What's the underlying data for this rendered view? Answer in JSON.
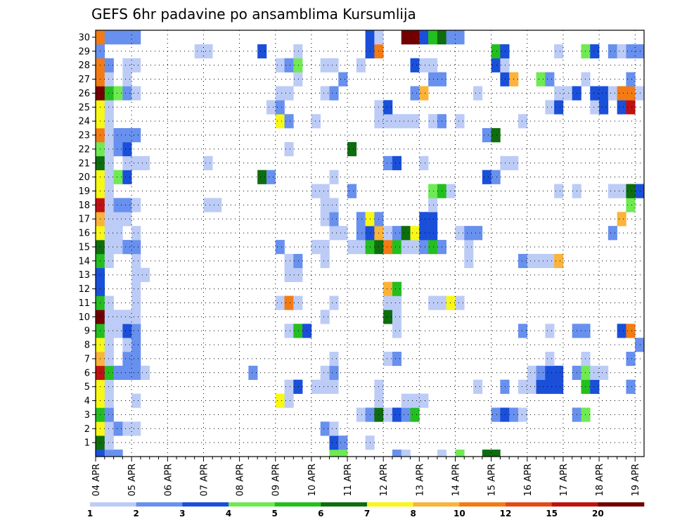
{
  "chart_data": {
    "type": "heatmap",
    "title": "GEFS 6hr padavine po ansamblima Kursumlija",
    "x_tick_labels": [
      "04 APR",
      "05 APR",
      "06 APR",
      "07 APR",
      "08 APR",
      "09 APR",
      "10 APR",
      "11 APR",
      "12 APR",
      "13 APR",
      "14 APR",
      "15 APR",
      "16 APR",
      "17 APR",
      "18 APR",
      "19 APR"
    ],
    "y_tick_labels": [
      "1",
      "2",
      "3",
      "4",
      "5",
      "6",
      "7",
      "8",
      "9",
      "10",
      "11",
      "12",
      "13",
      "14",
      "15",
      "16",
      "17",
      "18",
      "19",
      "20",
      "21",
      "22",
      "23",
      "24",
      "25",
      "26",
      "27",
      "28",
      "29",
      "30"
    ],
    "n_steps": 61,
    "steps_per_day": 4,
    "y_range": [
      0,
      30
    ],
    "grid": "dotted",
    "colorbar": {
      "levels": [
        "1",
        "2",
        "3",
        "4",
        "5",
        "6",
        "7",
        "8",
        "10",
        "12",
        "15",
        "20"
      ],
      "colors": [
        "#bcccf6",
        "#6890ee",
        "#1a4fd9",
        "#6fea53",
        "#23bf1f",
        "#0e6d0e",
        "#f8f816",
        "#fbb33a",
        "#f37b14",
        "#e34a17",
        "#c01111",
        "#720000"
      ]
    },
    "member_cells": {
      "0": [
        [
          0,
          2
        ],
        [
          1,
          1
        ],
        [
          2,
          1
        ],
        [
          26,
          3
        ],
        [
          27,
          3
        ],
        [
          33,
          1
        ],
        [
          34,
          0
        ],
        [
          38,
          0
        ],
        [
          40,
          3
        ],
        [
          43,
          5
        ],
        [
          44,
          5
        ]
      ],
      "1": [
        [
          0,
          5
        ],
        [
          1,
          0
        ],
        [
          26,
          2
        ],
        [
          27,
          1
        ],
        [
          30,
          0
        ]
      ],
      "2": [
        [
          0,
          6
        ],
        [
          1,
          0
        ],
        [
          2,
          1
        ],
        [
          3,
          0
        ],
        [
          4,
          0
        ],
        [
          25,
          1
        ],
        [
          26,
          0
        ]
      ],
      "3": [
        [
          0,
          4
        ],
        [
          1,
          1
        ],
        [
          29,
          0
        ],
        [
          30,
          1
        ],
        [
          31,
          5
        ],
        [
          32,
          0
        ],
        [
          33,
          2
        ],
        [
          34,
          1
        ],
        [
          35,
          4
        ],
        [
          44,
          1
        ],
        [
          45,
          2
        ],
        [
          46,
          1
        ],
        [
          47,
          0
        ],
        [
          53,
          1
        ],
        [
          54,
          3
        ]
      ],
      "4": [
        [
          0,
          6
        ],
        [
          1,
          0
        ],
        [
          4,
          0
        ],
        [
          20,
          6
        ],
        [
          21,
          0
        ],
        [
          31,
          0
        ],
        [
          34,
          0
        ],
        [
          35,
          0
        ],
        [
          36,
          0
        ]
      ],
      "5": [
        [
          0,
          6
        ],
        [
          1,
          0
        ],
        [
          21,
          0
        ],
        [
          22,
          2
        ],
        [
          24,
          0
        ],
        [
          25,
          0
        ],
        [
          26,
          0
        ],
        [
          31,
          0
        ],
        [
          42,
          0
        ],
        [
          45,
          1
        ],
        [
          47,
          0
        ],
        [
          48,
          0
        ],
        [
          49,
          2
        ],
        [
          50,
          2
        ],
        [
          51,
          2
        ],
        [
          54,
          4
        ],
        [
          55,
          2
        ],
        [
          59,
          1
        ]
      ],
      "6": [
        [
          0,
          10
        ],
        [
          1,
          4
        ],
        [
          2,
          1
        ],
        [
          3,
          1
        ],
        [
          4,
          1
        ],
        [
          5,
          0
        ],
        [
          17,
          1
        ],
        [
          25,
          0
        ],
        [
          26,
          1
        ],
        [
          48,
          0
        ],
        [
          49,
          1
        ],
        [
          50,
          2
        ],
        [
          51,
          2
        ],
        [
          53,
          1
        ],
        [
          54,
          3
        ],
        [
          55,
          0
        ],
        [
          56,
          0
        ]
      ],
      "7": [
        [
          0,
          7
        ],
        [
          1,
          0
        ],
        [
          3,
          1
        ],
        [
          4,
          1
        ],
        [
          26,
          0
        ],
        [
          32,
          0
        ],
        [
          33,
          1
        ],
        [
          50,
          0
        ],
        [
          54,
          0
        ],
        [
          59,
          1
        ]
      ],
      "8": [
        [
          0,
          6
        ],
        [
          1,
          0
        ],
        [
          3,
          0
        ],
        [
          4,
          1
        ],
        [
          60,
          1
        ]
      ],
      "9": [
        [
          0,
          4
        ],
        [
          1,
          0
        ],
        [
          2,
          0
        ],
        [
          3,
          2
        ],
        [
          4,
          1
        ],
        [
          21,
          0
        ],
        [
          22,
          4
        ],
        [
          23,
          2
        ],
        [
          33,
          0
        ],
        [
          47,
          1
        ],
        [
          50,
          0
        ],
        [
          53,
          1
        ],
        [
          54,
          1
        ],
        [
          58,
          2
        ],
        [
          59,
          8
        ]
      ],
      "10": [
        [
          0,
          11
        ],
        [
          1,
          0
        ],
        [
          2,
          0
        ],
        [
          3,
          0
        ],
        [
          4,
          0
        ],
        [
          25,
          0
        ],
        [
          32,
          5
        ],
        [
          33,
          0
        ]
      ],
      "11": [
        [
          0,
          4
        ],
        [
          1,
          0
        ],
        [
          4,
          0
        ],
        [
          20,
          0
        ],
        [
          21,
          8
        ],
        [
          22,
          0
        ],
        [
          26,
          0
        ],
        [
          32,
          0
        ],
        [
          33,
          0
        ],
        [
          37,
          0
        ],
        [
          38,
          0
        ],
        [
          39,
          6
        ],
        [
          40,
          0
        ]
      ],
      "12": [
        [
          0,
          2
        ],
        [
          4,
          0
        ],
        [
          32,
          7
        ],
        [
          33,
          4
        ]
      ],
      "13": [
        [
          0,
          2
        ],
        [
          4,
          0
        ],
        [
          5,
          0
        ],
        [
          21,
          0
        ],
        [
          22,
          0
        ]
      ],
      "14": [
        [
          0,
          4
        ],
        [
          1,
          0
        ],
        [
          4,
          0
        ],
        [
          21,
          0
        ],
        [
          22,
          1
        ],
        [
          25,
          0
        ],
        [
          41,
          0
        ],
        [
          47,
          1
        ],
        [
          48,
          0
        ],
        [
          49,
          0
        ],
        [
          50,
          0
        ],
        [
          51,
          7
        ]
      ],
      "15": [
        [
          0,
          5
        ],
        [
          1,
          0
        ],
        [
          2,
          0
        ],
        [
          3,
          1
        ],
        [
          4,
          1
        ],
        [
          20,
          1
        ],
        [
          24,
          0
        ],
        [
          25,
          0
        ],
        [
          28,
          0
        ],
        [
          29,
          0
        ],
        [
          30,
          4
        ],
        [
          31,
          5
        ],
        [
          32,
          8
        ],
        [
          33,
          4
        ],
        [
          34,
          0
        ],
        [
          35,
          0
        ],
        [
          36,
          1
        ],
        [
          37,
          4
        ],
        [
          38,
          1
        ],
        [
          41,
          0
        ]
      ],
      "16": [
        [
          0,
          6
        ],
        [
          1,
          0
        ],
        [
          2,
          0
        ],
        [
          4,
          0
        ],
        [
          26,
          0
        ],
        [
          27,
          0
        ],
        [
          29,
          1
        ],
        [
          30,
          2
        ],
        [
          31,
          7
        ],
        [
          32,
          0
        ],
        [
          33,
          1
        ],
        [
          34,
          5
        ],
        [
          35,
          6
        ],
        [
          36,
          2
        ],
        [
          37,
          2
        ],
        [
          40,
          0
        ],
        [
          41,
          1
        ],
        [
          42,
          1
        ],
        [
          57,
          1
        ]
      ],
      "17": [
        [
          0,
          7
        ],
        [
          1,
          0
        ],
        [
          2,
          0
        ],
        [
          3,
          0
        ],
        [
          25,
          0
        ],
        [
          26,
          1
        ],
        [
          29,
          1
        ],
        [
          30,
          6
        ],
        [
          31,
          1
        ],
        [
          36,
          2
        ],
        [
          37,
          2
        ],
        [
          58,
          7
        ]
      ],
      "18": [
        [
          0,
          10
        ],
        [
          1,
          0
        ],
        [
          2,
          1
        ],
        [
          3,
          1
        ],
        [
          4,
          0
        ],
        [
          12,
          0
        ],
        [
          13,
          0
        ],
        [
          25,
          0
        ],
        [
          26,
          0
        ],
        [
          37,
          0
        ],
        [
          59,
          3
        ]
      ],
      "19": [
        [
          0,
          6
        ],
        [
          1,
          0
        ],
        [
          24,
          0
        ],
        [
          25,
          0
        ],
        [
          28,
          1
        ],
        [
          37,
          3
        ],
        [
          38,
          4
        ],
        [
          39,
          0
        ],
        [
          51,
          0
        ],
        [
          53,
          0
        ],
        [
          57,
          0
        ],
        [
          58,
          0
        ],
        [
          59,
          5
        ],
        [
          60,
          2
        ]
      ],
      "20": [
        [
          0,
          6
        ],
        [
          1,
          0
        ],
        [
          2,
          3
        ],
        [
          3,
          2
        ],
        [
          18,
          5
        ],
        [
          19,
          1
        ],
        [
          26,
          0
        ],
        [
          43,
          2
        ],
        [
          44,
          1
        ]
      ],
      "21": [
        [
          0,
          5
        ],
        [
          1,
          0
        ],
        [
          3,
          0
        ],
        [
          4,
          0
        ],
        [
          5,
          0
        ],
        [
          12,
          0
        ],
        [
          32,
          1
        ],
        [
          33,
          2
        ],
        [
          36,
          0
        ],
        [
          45,
          0
        ],
        [
          46,
          0
        ]
      ],
      "22": [
        [
          0,
          3
        ],
        [
          1,
          0
        ],
        [
          2,
          1
        ],
        [
          3,
          2
        ],
        [
          21,
          0
        ],
        [
          28,
          5
        ]
      ],
      "23": [
        [
          0,
          8
        ],
        [
          1,
          0
        ],
        [
          2,
          1
        ],
        [
          3,
          1
        ],
        [
          4,
          1
        ],
        [
          43,
          1
        ],
        [
          44,
          5
        ]
      ],
      "24": [
        [
          0,
          6
        ],
        [
          1,
          0
        ],
        [
          20,
          6
        ],
        [
          21,
          1
        ],
        [
          24,
          0
        ],
        [
          31,
          0
        ],
        [
          32,
          0
        ],
        [
          33,
          0
        ],
        [
          34,
          0
        ],
        [
          35,
          0
        ],
        [
          37,
          0
        ],
        [
          38,
          1
        ],
        [
          40,
          0
        ],
        [
          47,
          0
        ]
      ],
      "25": [
        [
          0,
          6
        ],
        [
          1,
          0
        ],
        [
          19,
          0
        ],
        [
          20,
          1
        ],
        [
          31,
          0
        ],
        [
          32,
          2
        ],
        [
          50,
          0
        ],
        [
          51,
          2
        ],
        [
          55,
          0
        ],
        [
          56,
          2
        ],
        [
          58,
          2
        ],
        [
          59,
          10
        ]
      ],
      "26": [
        [
          0,
          11
        ],
        [
          1,
          4
        ],
        [
          2,
          3
        ],
        [
          3,
          1
        ],
        [
          4,
          0
        ],
        [
          20,
          0
        ],
        [
          21,
          0
        ],
        [
          25,
          0
        ],
        [
          26,
          1
        ],
        [
          35,
          1
        ],
        [
          36,
          7
        ],
        [
          42,
          0
        ],
        [
          51,
          0
        ],
        [
          52,
          0
        ],
        [
          53,
          2
        ],
        [
          55,
          2
        ],
        [
          56,
          2
        ],
        [
          57,
          0
        ],
        [
          58,
          8
        ],
        [
          59,
          8
        ],
        [
          60,
          0
        ]
      ],
      "27": [
        [
          0,
          8
        ],
        [
          1,
          0
        ],
        [
          3,
          0
        ],
        [
          22,
          0
        ],
        [
          27,
          1
        ],
        [
          37,
          1
        ],
        [
          38,
          1
        ],
        [
          45,
          2
        ],
        [
          46,
          7
        ],
        [
          49,
          3
        ],
        [
          50,
          1
        ],
        [
          54,
          0
        ],
        [
          59,
          1
        ]
      ],
      "28": [
        [
          0,
          8
        ],
        [
          1,
          1
        ],
        [
          3,
          0
        ],
        [
          4,
          0
        ],
        [
          20,
          0
        ],
        [
          21,
          1
        ],
        [
          22,
          3
        ],
        [
          25,
          0
        ],
        [
          26,
          0
        ],
        [
          29,
          0
        ],
        [
          35,
          2
        ],
        [
          36,
          0
        ],
        [
          37,
          0
        ],
        [
          44,
          2
        ],
        [
          45,
          0
        ]
      ],
      "29": [
        [
          0,
          1
        ],
        [
          11,
          0
        ],
        [
          12,
          0
        ],
        [
          18,
          2
        ],
        [
          22,
          0
        ],
        [
          30,
          2
        ],
        [
          31,
          8
        ],
        [
          44,
          4
        ],
        [
          45,
          2
        ],
        [
          51,
          0
        ],
        [
          54,
          3
        ],
        [
          55,
          2
        ],
        [
          57,
          1
        ],
        [
          58,
          0
        ],
        [
          59,
          1
        ],
        [
          60,
          1
        ]
      ],
      "30": [
        [
          0,
          8
        ],
        [
          1,
          1
        ],
        [
          2,
          1
        ],
        [
          3,
          1
        ],
        [
          4,
          1
        ],
        [
          30,
          2
        ],
        [
          31,
          0
        ],
        [
          34,
          11
        ],
        [
          35,
          11
        ],
        [
          36,
          2
        ],
        [
          37,
          4
        ],
        [
          38,
          5
        ],
        [
          39,
          1
        ],
        [
          40,
          1
        ]
      ]
    }
  }
}
